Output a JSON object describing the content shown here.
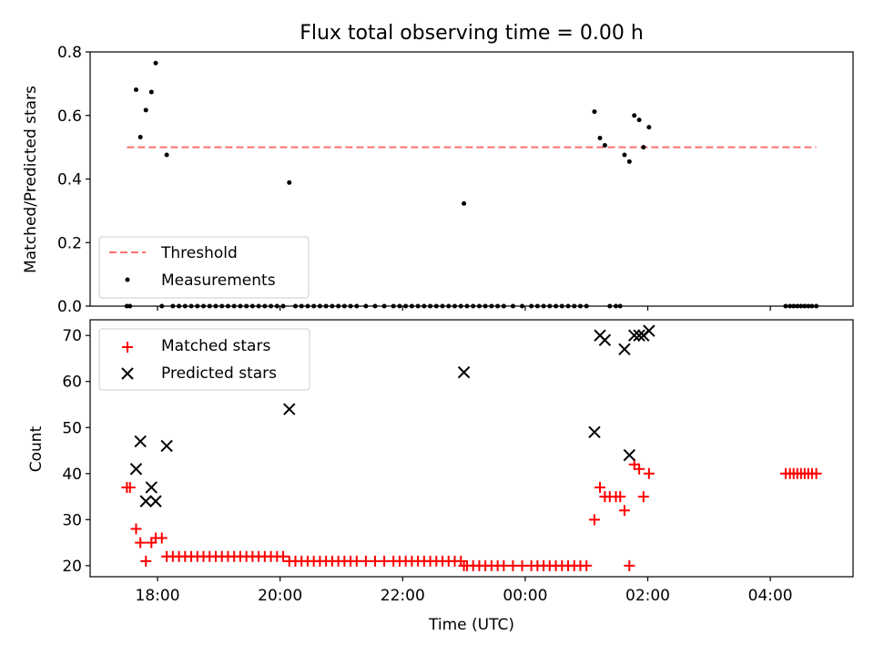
{
  "title": "Flux total observing time = 0.00 h",
  "chart_data": [
    {
      "type": "scatter",
      "panel": "top",
      "ylabel": "Matched/Predicted stars",
      "xlabel": "",
      "xlim_hours": [
        16.9,
        29.35
      ],
      "ylim": [
        0,
        0.8
      ],
      "yticks": [
        0.0,
        0.2,
        0.4,
        0.6,
        0.8
      ],
      "ytick_labels": [
        "0.0",
        "0.2",
        "0.4",
        "0.6",
        "0.8"
      ],
      "legend": {
        "placement": "lower-left",
        "entries": [
          "Threshold",
          "Measurements"
        ]
      },
      "threshold": {
        "name": "Threshold",
        "value": 0.5,
        "x_range_hours": [
          17.5,
          28.75
        ],
        "color": "#ff6f6f",
        "style": "dashed"
      },
      "series": [
        {
          "name": "Measurements",
          "color": "#000000",
          "marker": "dot",
          "points": [
            [
              17.5,
              0.0
            ],
            [
              17.55,
              0.0
            ],
            [
              17.65,
              0.681
            ],
            [
              17.72,
              0.532
            ],
            [
              17.81,
              0.617
            ],
            [
              17.9,
              0.674
            ],
            [
              17.97,
              0.765
            ],
            [
              18.07,
              0.0
            ],
            [
              18.15,
              0.476
            ],
            [
              18.25,
              0.0
            ],
            [
              18.35,
              0.0
            ],
            [
              18.45,
              0.0
            ],
            [
              18.55,
              0.0
            ],
            [
              18.65,
              0.0
            ],
            [
              18.75,
              0.0
            ],
            [
              18.85,
              0.0
            ],
            [
              18.95,
              0.0
            ],
            [
              19.05,
              0.0
            ],
            [
              19.15,
              0.0
            ],
            [
              19.25,
              0.0
            ],
            [
              19.35,
              0.0
            ],
            [
              19.45,
              0.0
            ],
            [
              19.55,
              0.0
            ],
            [
              19.65,
              0.0
            ],
            [
              19.75,
              0.0
            ],
            [
              19.85,
              0.0
            ],
            [
              19.95,
              0.0
            ],
            [
              20.05,
              0.0
            ],
            [
              20.15,
              0.389
            ],
            [
              20.25,
              0.0
            ],
            [
              20.35,
              0.0
            ],
            [
              20.45,
              0.0
            ],
            [
              20.55,
              0.0
            ],
            [
              20.65,
              0.0
            ],
            [
              20.75,
              0.0
            ],
            [
              20.85,
              0.0
            ],
            [
              20.95,
              0.0
            ],
            [
              21.05,
              0.0
            ],
            [
              21.15,
              0.0
            ],
            [
              21.25,
              0.0
            ],
            [
              21.4,
              0.0
            ],
            [
              21.55,
              0.0
            ],
            [
              21.7,
              0.0
            ],
            [
              21.85,
              0.0
            ],
            [
              21.95,
              0.0
            ],
            [
              22.05,
              0.0
            ],
            [
              22.15,
              0.0
            ],
            [
              22.25,
              0.0
            ],
            [
              22.35,
              0.0
            ],
            [
              22.45,
              0.0
            ],
            [
              22.55,
              0.0
            ],
            [
              22.65,
              0.0
            ],
            [
              22.75,
              0.0
            ],
            [
              22.85,
              0.0
            ],
            [
              22.95,
              0.0
            ],
            [
              23.0,
              0.323
            ],
            [
              23.05,
              0.0
            ],
            [
              23.15,
              0.0
            ],
            [
              23.25,
              0.0
            ],
            [
              23.35,
              0.0
            ],
            [
              23.45,
              0.0
            ],
            [
              23.55,
              0.0
            ],
            [
              23.65,
              0.0
            ],
            [
              23.8,
              0.0
            ],
            [
              23.95,
              0.0
            ],
            [
              24.1,
              0.0
            ],
            [
              24.2,
              0.0
            ],
            [
              24.3,
              0.0
            ],
            [
              24.4,
              0.0
            ],
            [
              24.5,
              0.0
            ],
            [
              24.6,
              0.0
            ],
            [
              24.7,
              0.0
            ],
            [
              24.8,
              0.0
            ],
            [
              24.9,
              0.0
            ],
            [
              25.0,
              0.0
            ],
            [
              25.13,
              0.612
            ],
            [
              25.22,
              0.529
            ],
            [
              25.3,
              0.506
            ],
            [
              25.38,
              0.0
            ],
            [
              25.48,
              0.0
            ],
            [
              25.55,
              0.0
            ],
            [
              25.62,
              0.476
            ],
            [
              25.7,
              0.455
            ],
            [
              25.78,
              0.6
            ],
            [
              25.86,
              0.586
            ],
            [
              25.93,
              0.5
            ],
            [
              26.02,
              0.563
            ],
            [
              28.25,
              0.0
            ],
            [
              28.32,
              0.0
            ],
            [
              28.38,
              0.0
            ],
            [
              28.44,
              0.0
            ],
            [
              28.5,
              0.0
            ],
            [
              28.56,
              0.0
            ],
            [
              28.62,
              0.0
            ],
            [
              28.68,
              0.0
            ],
            [
              28.75,
              0.0
            ]
          ]
        }
      ]
    },
    {
      "type": "scatter",
      "panel": "bottom",
      "ylabel": "Count",
      "xlabel": "Time (UTC)",
      "xlim_hours": [
        16.9,
        29.35
      ],
      "ylim": [
        17.6,
        73.4
      ],
      "yticks": [
        20,
        30,
        40,
        50,
        60,
        70
      ],
      "ytick_labels": [
        "20",
        "30",
        "40",
        "50",
        "60",
        "70"
      ],
      "xticks_hours": [
        18,
        20,
        22,
        24,
        26,
        28
      ],
      "xtick_labels": [
        "18:00",
        "20:00",
        "22:00",
        "00:00",
        "02:00",
        "04:00"
      ],
      "legend": {
        "placement": "upper-left",
        "entries": [
          "Matched stars",
          "Predicted stars"
        ]
      },
      "series": [
        {
          "name": "Matched stars",
          "color": "#ff0000",
          "marker": "plus",
          "points": [
            [
              17.5,
              37
            ],
            [
              17.55,
              37
            ],
            [
              17.65,
              28
            ],
            [
              17.72,
              25
            ],
            [
              17.81,
              21
            ],
            [
              17.9,
              25
            ],
            [
              17.97,
              26
            ],
            [
              18.07,
              26
            ],
            [
              18.15,
              22
            ],
            [
              18.25,
              22
            ],
            [
              18.35,
              22
            ],
            [
              18.45,
              22
            ],
            [
              18.55,
              22
            ],
            [
              18.65,
              22
            ],
            [
              18.75,
              22
            ],
            [
              18.85,
              22
            ],
            [
              18.95,
              22
            ],
            [
              19.05,
              22
            ],
            [
              19.15,
              22
            ],
            [
              19.25,
              22
            ],
            [
              19.35,
              22
            ],
            [
              19.45,
              22
            ],
            [
              19.55,
              22
            ],
            [
              19.65,
              22
            ],
            [
              19.75,
              22
            ],
            [
              19.85,
              22
            ],
            [
              19.95,
              22
            ],
            [
              20.05,
              22
            ],
            [
              20.15,
              21
            ],
            [
              20.25,
              21
            ],
            [
              20.35,
              21
            ],
            [
              20.45,
              21
            ],
            [
              20.55,
              21
            ],
            [
              20.65,
              21
            ],
            [
              20.75,
              21
            ],
            [
              20.85,
              21
            ],
            [
              20.95,
              21
            ],
            [
              21.05,
              21
            ],
            [
              21.15,
              21
            ],
            [
              21.25,
              21
            ],
            [
              21.4,
              21
            ],
            [
              21.55,
              21
            ],
            [
              21.7,
              21
            ],
            [
              21.85,
              21
            ],
            [
              21.95,
              21
            ],
            [
              22.05,
              21
            ],
            [
              22.15,
              21
            ],
            [
              22.25,
              21
            ],
            [
              22.35,
              21
            ],
            [
              22.45,
              21
            ],
            [
              22.55,
              21
            ],
            [
              22.65,
              21
            ],
            [
              22.75,
              21
            ],
            [
              22.85,
              21
            ],
            [
              22.95,
              21
            ],
            [
              23.0,
              20
            ],
            [
              23.05,
              20
            ],
            [
              23.15,
              20
            ],
            [
              23.25,
              20
            ],
            [
              23.35,
              20
            ],
            [
              23.45,
              20
            ],
            [
              23.55,
              20
            ],
            [
              23.65,
              20
            ],
            [
              23.8,
              20
            ],
            [
              23.95,
              20
            ],
            [
              24.1,
              20
            ],
            [
              24.2,
              20
            ],
            [
              24.3,
              20
            ],
            [
              24.4,
              20
            ],
            [
              24.5,
              20
            ],
            [
              24.6,
              20
            ],
            [
              24.7,
              20
            ],
            [
              24.8,
              20
            ],
            [
              24.9,
              20
            ],
            [
              25.0,
              20
            ],
            [
              25.13,
              30
            ],
            [
              25.22,
              37
            ],
            [
              25.3,
              35
            ],
            [
              25.38,
              35
            ],
            [
              25.48,
              35
            ],
            [
              25.55,
              35
            ],
            [
              25.62,
              32
            ],
            [
              25.7,
              20
            ],
            [
              25.78,
              42
            ],
            [
              25.86,
              41
            ],
            [
              25.93,
              35
            ],
            [
              26.02,
              40
            ],
            [
              28.25,
              40
            ],
            [
              28.32,
              40
            ],
            [
              28.38,
              40
            ],
            [
              28.44,
              40
            ],
            [
              28.5,
              40
            ],
            [
              28.56,
              40
            ],
            [
              28.62,
              40
            ],
            [
              28.68,
              40
            ],
            [
              28.75,
              40
            ]
          ]
        },
        {
          "name": "Predicted stars",
          "color": "#000000",
          "marker": "x",
          "points": [
            [
              17.65,
              41
            ],
            [
              17.72,
              47
            ],
            [
              17.81,
              34
            ],
            [
              17.9,
              37
            ],
            [
              17.97,
              34
            ],
            [
              18.15,
              46
            ],
            [
              20.15,
              54
            ],
            [
              23.0,
              62
            ],
            [
              25.13,
              49
            ],
            [
              25.22,
              70
            ],
            [
              25.3,
              69
            ],
            [
              25.62,
              67
            ],
            [
              25.7,
              44
            ],
            [
              25.78,
              70
            ],
            [
              25.86,
              70
            ],
            [
              25.93,
              70
            ],
            [
              26.02,
              71
            ]
          ]
        }
      ]
    }
  ]
}
